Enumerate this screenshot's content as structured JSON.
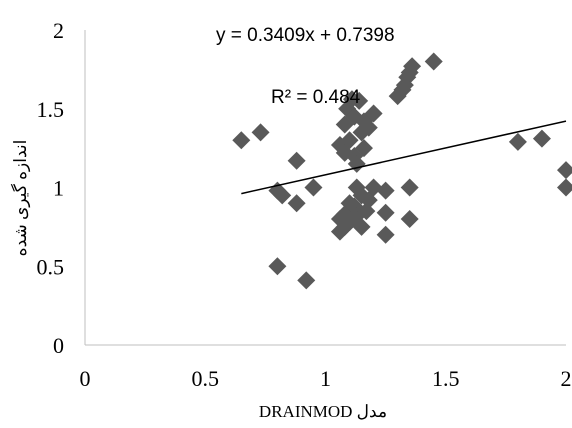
{
  "chart_data": {
    "type": "scatter",
    "title": "",
    "xlabel": "مدل DRAINMOD",
    "ylabel": "اندازه گیری شده",
    "xlim": [
      0,
      2
    ],
    "ylim": [
      0,
      2
    ],
    "x_ticks": [
      "0",
      "0.5",
      "1",
      "1.5",
      "2"
    ],
    "y_ticks": [
      "0",
      "0.5",
      "1",
      "1.5",
      "2"
    ],
    "grid": false,
    "legend": "none",
    "marker": "diamond",
    "marker_color": "#595959",
    "trendline": {
      "slope": 0.3409,
      "intercept": 0.7398,
      "x_range": [
        0.65,
        2.0
      ],
      "equation_label": "y = 0.3409x + 0.7398",
      "r2_label": "R² = 0.484"
    },
    "points": [
      [
        0.65,
        1.3
      ],
      [
        0.73,
        1.35
      ],
      [
        0.8,
        0.98
      ],
      [
        0.8,
        0.5
      ],
      [
        0.82,
        0.95
      ],
      [
        0.88,
        1.17
      ],
      [
        0.88,
        0.9
      ],
      [
        0.92,
        0.41
      ],
      [
        0.95,
        1.0
      ],
      [
        1.06,
        0.72
      ],
      [
        1.06,
        0.8
      ],
      [
        1.06,
        1.27
      ],
      [
        1.08,
        0.75
      ],
      [
        1.08,
        0.83
      ],
      [
        1.08,
        1.22
      ],
      [
        1.08,
        1.4
      ],
      [
        1.09,
        1.5
      ],
      [
        1.1,
        0.78
      ],
      [
        1.1,
        0.9
      ],
      [
        1.1,
        1.3
      ],
      [
        1.11,
        1.56
      ],
      [
        1.12,
        0.88
      ],
      [
        1.12,
        1.2
      ],
      [
        1.12,
        1.45
      ],
      [
        1.13,
        0.82
      ],
      [
        1.13,
        1.0
      ],
      [
        1.13,
        1.15
      ],
      [
        1.14,
        1.55
      ],
      [
        1.15,
        0.75
      ],
      [
        1.15,
        0.95
      ],
      [
        1.15,
        1.35
      ],
      [
        1.16,
        1.25
      ],
      [
        1.16,
        1.42
      ],
      [
        1.17,
        0.85
      ],
      [
        1.18,
        0.92
      ],
      [
        1.18,
        1.38
      ],
      [
        1.2,
        1.0
      ],
      [
        1.2,
        1.47
      ],
      [
        1.25,
        0.7
      ],
      [
        1.25,
        0.84
      ],
      [
        1.25,
        0.98
      ],
      [
        1.3,
        1.58
      ],
      [
        1.32,
        1.62
      ],
      [
        1.33,
        1.65
      ],
      [
        1.34,
        1.7
      ],
      [
        1.35,
        0.8
      ],
      [
        1.35,
        1.0
      ],
      [
        1.35,
        1.73
      ],
      [
        1.36,
        1.77
      ],
      [
        1.45,
        1.8
      ],
      [
        1.8,
        1.29
      ],
      [
        1.9,
        1.31
      ],
      [
        2.0,
        1.11
      ],
      [
        2.0,
        1.0
      ]
    ]
  }
}
